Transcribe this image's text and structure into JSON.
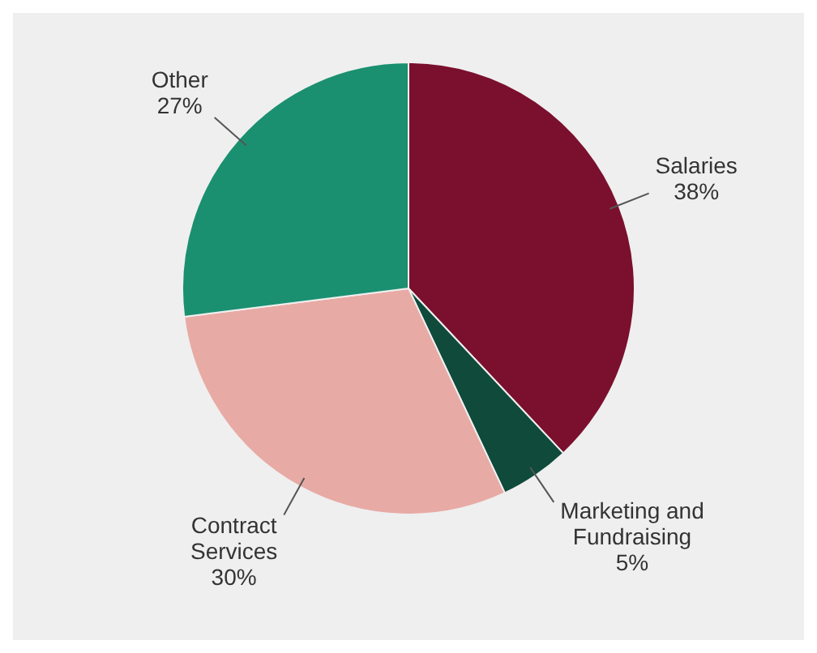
{
  "chart_data": {
    "type": "pie",
    "categories": [
      "Salaries",
      "Marketing and Fundraising",
      "Contract Services",
      "Other"
    ],
    "values": [
      38,
      5,
      30,
      27
    ],
    "value_labels": [
      "38%",
      "5%",
      "30%",
      "27%"
    ],
    "colors": [
      "#7b0f2e",
      "#0f4a3a",
      "#e8aaa5",
      "#1a9070"
    ]
  }
}
